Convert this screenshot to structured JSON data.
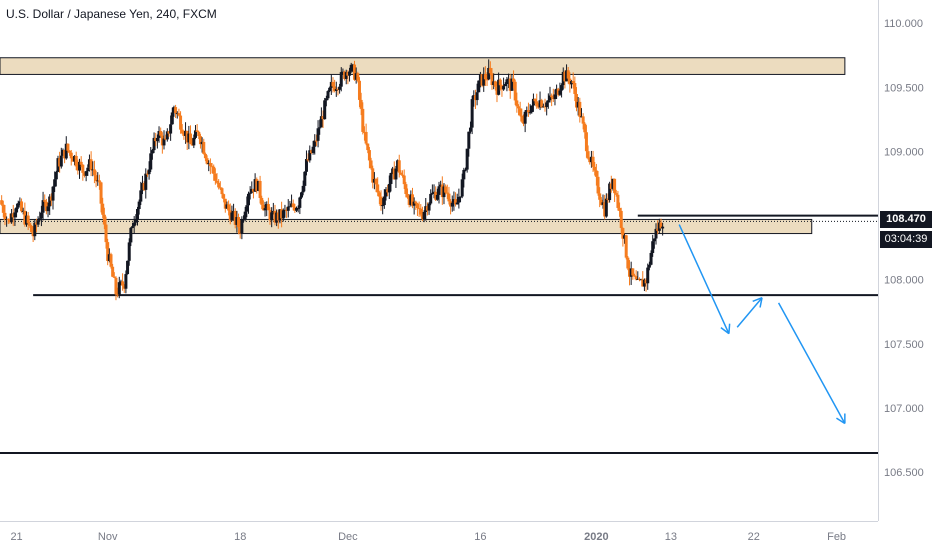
{
  "title": "U.S. Dollar / Japanese Yen, 240, FXCM",
  "last_price_label": "108.470",
  "countdown_label": "03:04:39",
  "colors": {
    "up": "#131722",
    "down": "#f57c1f",
    "zone_fill": "#ecdcbf",
    "line": "#131722",
    "arrow": "#2196f3",
    "axis_text": "#787b86"
  },
  "chart_data": {
    "type": "candlestick",
    "title": "U.S. Dollar / Japanese Yen, 240, FXCM",
    "symbol": "USD/JPY",
    "timeframe": "240",
    "source": "FXCM",
    "xlabel": "",
    "ylabel": "",
    "y_ticks": [
      110.0,
      109.5,
      109.0,
      108.5,
      108.0,
      107.5,
      107.0,
      106.5
    ],
    "y_tick_labels": [
      "110.000",
      "109.500",
      "109.000",
      "108.500",
      "108.000",
      "107.500",
      "107.000",
      "106.500"
    ],
    "ylim": [
      106.12,
      110.18
    ],
    "x_tick_labels": [
      "21",
      "Nov",
      "18",
      "Dec",
      "16",
      "2020",
      "13",
      "22",
      "Feb"
    ],
    "x_tick_index": [
      2,
      13,
      29,
      42,
      58,
      72,
      81,
      91,
      101
    ],
    "x_index_range": [
      0,
      106
    ],
    "last_price": 108.47,
    "closes": [
      [
        0,
        108.62
      ],
      [
        1,
        108.45
      ],
      [
        2,
        108.6
      ],
      [
        3,
        108.48
      ],
      [
        4,
        108.35
      ],
      [
        5,
        108.55
      ],
      [
        6,
        108.62
      ],
      [
        7,
        108.9
      ],
      [
        8,
        109.02
      ],
      [
        9,
        108.95
      ],
      [
        10,
        108.85
      ],
      [
        11,
        108.9
      ],
      [
        12,
        108.7
      ],
      [
        13,
        108.2
      ],
      [
        14,
        107.9
      ],
      [
        15,
        107.98
      ],
      [
        16,
        108.45
      ],
      [
        17,
        108.65
      ],
      [
        18,
        108.9
      ],
      [
        19,
        109.15
      ],
      [
        20,
        109.05
      ],
      [
        21,
        109.35
      ],
      [
        22,
        109.2
      ],
      [
        23,
        109.05
      ],
      [
        24,
        109.15
      ],
      [
        25,
        108.95
      ],
      [
        26,
        108.8
      ],
      [
        27,
        108.6
      ],
      [
        28,
        108.5
      ],
      [
        29,
        108.4
      ],
      [
        30,
        108.7
      ],
      [
        31,
        108.75
      ],
      [
        32,
        108.55
      ],
      [
        33,
        108.48
      ],
      [
        34,
        108.5
      ],
      [
        35,
        108.55
      ],
      [
        36,
        108.6
      ],
      [
        37,
        108.9
      ],
      [
        38,
        109.05
      ],
      [
        39,
        109.3
      ],
      [
        40,
        109.5
      ],
      [
        41,
        109.55
      ],
      [
        42,
        109.65
      ],
      [
        43,
        109.6
      ],
      [
        44,
        109.1
      ],
      [
        45,
        108.8
      ],
      [
        46,
        108.6
      ],
      [
        47,
        108.75
      ],
      [
        48,
        108.9
      ],
      [
        49,
        108.7
      ],
      [
        50,
        108.55
      ],
      [
        51,
        108.52
      ],
      [
        52,
        108.65
      ],
      [
        53,
        108.7
      ],
      [
        54,
        108.68
      ],
      [
        55,
        108.55
      ],
      [
        56,
        108.8
      ],
      [
        57,
        109.35
      ],
      [
        58,
        109.55
      ],
      [
        59,
        109.6
      ],
      [
        60,
        109.5
      ],
      [
        61,
        109.55
      ],
      [
        62,
        109.5
      ],
      [
        63,
        109.2
      ],
      [
        64,
        109.35
      ],
      [
        65,
        109.4
      ],
      [
        66,
        109.38
      ],
      [
        67,
        109.42
      ],
      [
        68,
        109.6
      ],
      [
        69,
        109.55
      ],
      [
        70,
        109.3
      ],
      [
        71,
        109.0
      ],
      [
        72,
        108.75
      ],
      [
        73,
        108.55
      ],
      [
        74,
        108.8
      ],
      [
        75,
        108.45
      ],
      [
        76,
        108.05
      ],
      [
        77,
        107.95
      ],
      [
        78,
        108.0
      ],
      [
        79,
        108.35
      ],
      [
        80,
        108.47
      ]
    ],
    "zones": [
      {
        "name": "resistance",
        "from": 109.6,
        "to": 109.73,
        "x_start": 0,
        "x_end": 102
      },
      {
        "name": "support",
        "from": 108.36,
        "to": 108.47,
        "x_start": 0,
        "x_end": 98
      }
    ],
    "horizontal_lines": [
      {
        "y": 107.88,
        "x_start": 4,
        "x_end": 106
      },
      {
        "y": 106.65,
        "x_start": 0,
        "x_end": 106
      },
      {
        "y": 108.5,
        "x_start": 77,
        "x_end": 106
      }
    ],
    "arrows": [
      {
        "from": [
          82,
          108.43
        ],
        "to": [
          88,
          107.58
        ]
      },
      {
        "from": [
          89,
          107.63
        ],
        "to": [
          92,
          107.86
        ]
      },
      {
        "from": [
          94,
          107.82
        ],
        "to": [
          102,
          106.88
        ]
      }
    ],
    "grid": false,
    "legend": "none"
  }
}
